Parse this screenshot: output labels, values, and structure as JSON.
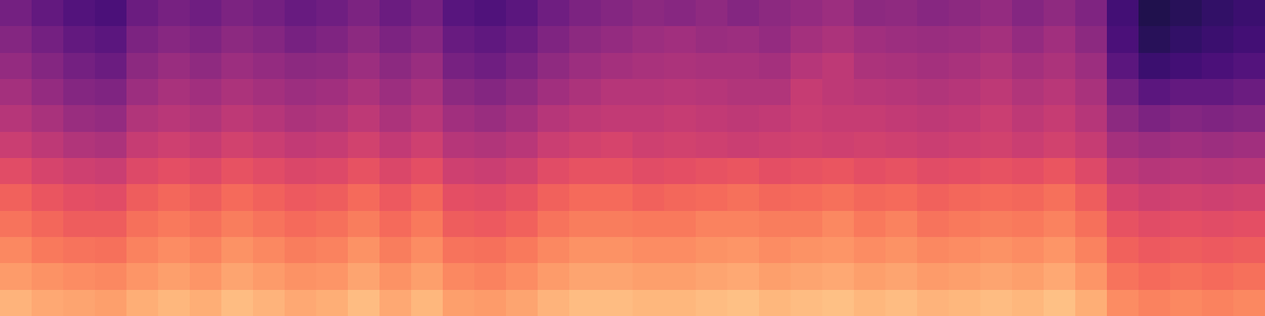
{
  "chart_data": {
    "type": "heatmap",
    "color": "magma",
    "tick_labels": false,
    "value_range": [
      0,
      100
    ],
    "cells": [
      [
        34,
        30,
        26,
        24,
        32,
        35,
        33,
        36,
        34,
        31,
        33,
        36,
        32,
        35,
        27,
        25,
        28,
        33,
        36,
        38,
        40,
        39,
        41,
        38,
        40,
        42,
        44,
        40,
        41,
        39,
        40,
        42,
        38,
        41,
        37,
        22,
        14,
        16,
        18,
        20
      ],
      [
        38,
        34,
        30,
        28,
        36,
        39,
        37,
        40,
        38,
        35,
        37,
        40,
        36,
        39,
        31,
        29,
        32,
        37,
        40,
        42,
        44,
        45,
        43,
        44,
        42,
        46,
        48,
        45,
        44,
        43,
        44,
        46,
        42,
        45,
        40,
        24,
        16,
        18,
        20,
        22
      ],
      [
        42,
        38,
        34,
        32,
        40,
        43,
        41,
        44,
        42,
        40,
        41,
        44,
        40,
        43,
        35,
        33,
        36,
        41,
        44,
        46,
        47,
        48,
        47,
        47,
        46,
        50,
        52,
        48,
        47,
        46,
        47,
        49,
        46,
        48,
        44,
        28,
        20,
        22,
        24,
        26
      ],
      [
        46,
        42,
        38,
        37,
        44,
        47,
        45,
        48,
        46,
        44,
        45,
        48,
        44,
        47,
        40,
        38,
        41,
        45,
        48,
        50,
        50,
        51,
        50,
        49,
        49,
        54,
        52,
        51,
        50,
        49,
        50,
        52,
        49,
        51,
        47,
        34,
        28,
        30,
        30,
        32
      ],
      [
        50,
        47,
        43,
        42,
        49,
        51,
        49,
        52,
        50,
        48,
        49,
        52,
        48,
        51,
        45,
        43,
        46,
        50,
        52,
        53,
        53,
        54,
        53,
        52,
        53,
        55,
        54,
        54,
        53,
        52,
        53,
        55,
        52,
        54,
        50,
        40,
        36,
        38,
        37,
        38
      ],
      [
        55,
        52,
        49,
        48,
        54,
        56,
        54,
        57,
        55,
        53,
        54,
        57,
        53,
        56,
        50,
        49,
        51,
        55,
        57,
        58,
        56,
        57,
        56,
        55,
        56,
        57,
        56,
        57,
        56,
        55,
        56,
        57,
        55,
        57,
        54,
        46,
        44,
        45,
        44,
        45
      ],
      [
        61,
        58,
        56,
        55,
        60,
        62,
        60,
        63,
        61,
        59,
        60,
        63,
        59,
        62,
        56,
        55,
        57,
        61,
        63,
        63,
        61,
        62,
        63,
        64,
        62,
        63,
        64,
        62,
        63,
        61,
        62,
        63,
        62,
        64,
        60,
        52,
        50,
        51,
        50,
        51
      ],
      [
        67,
        64,
        62,
        61,
        66,
        68,
        66,
        69,
        67,
        65,
        66,
        69,
        65,
        68,
        62,
        61,
        63,
        67,
        69,
        69,
        67,
        68,
        69,
        70,
        68,
        69,
        70,
        68,
        69,
        67,
        68,
        69,
        68,
        70,
        66,
        58,
        56,
        57,
        56,
        57
      ],
      [
        71,
        68,
        66,
        66,
        70,
        72,
        70,
        73,
        71,
        69,
        70,
        73,
        69,
        72,
        66,
        65,
        67,
        71,
        73,
        73,
        72,
        72,
        74,
        74,
        73,
        73,
        75,
        72,
        74,
        71,
        72,
        73,
        72,
        74,
        70,
        63,
        61,
        62,
        61,
        62
      ],
      [
        75,
        72,
        71,
        70,
        74,
        76,
        74,
        77,
        75,
        73,
        74,
        77,
        73,
        76,
        71,
        70,
        72,
        75,
        77,
        77,
        76,
        76,
        77,
        78,
        76,
        77,
        78,
        76,
        77,
        75,
        76,
        77,
        76,
        78,
        74,
        67,
        65,
        66,
        65,
        66
      ],
      [
        79,
        77,
        76,
        75,
        78,
        80,
        78,
        81,
        79,
        77,
        78,
        81,
        77,
        80,
        75,
        74,
        76,
        79,
        81,
        81,
        80,
        80,
        81,
        82,
        80,
        81,
        82,
        80,
        81,
        79,
        80,
        81,
        80,
        82,
        78,
        71,
        69,
        70,
        69,
        70
      ],
      [
        84,
        82,
        81,
        80,
        83,
        85,
        83,
        86,
        84,
        82,
        83,
        86,
        82,
        85,
        80,
        79,
        81,
        84,
        86,
        86,
        85,
        85,
        86,
        87,
        85,
        86,
        87,
        85,
        86,
        84,
        85,
        86,
        85,
        87,
        83,
        76,
        74,
        75,
        74,
        75
      ]
    ]
  }
}
